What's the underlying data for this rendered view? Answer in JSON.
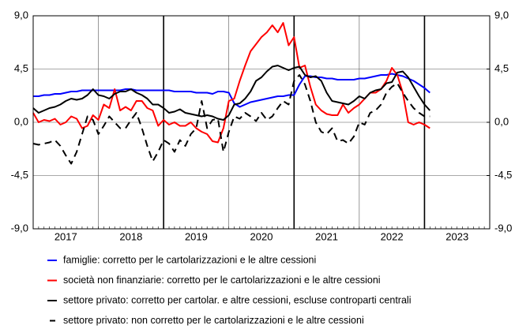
{
  "chart_data": {
    "type": "line",
    "x": [
      2017.0,
      2017.083,
      2017.167,
      2017.25,
      2017.333,
      2017.417,
      2017.5,
      2017.583,
      2017.667,
      2017.75,
      2017.833,
      2017.917,
      2018.0,
      2018.083,
      2018.167,
      2018.25,
      2018.333,
      2018.417,
      2018.5,
      2018.583,
      2018.667,
      2018.75,
      2018.833,
      2018.917,
      2019.0,
      2019.083,
      2019.167,
      2019.25,
      2019.333,
      2019.417,
      2019.5,
      2019.583,
      2019.667,
      2019.75,
      2019.833,
      2019.917,
      2020.0,
      2020.083,
      2020.167,
      2020.25,
      2020.333,
      2020.417,
      2020.5,
      2020.583,
      2020.667,
      2020.75,
      2020.833,
      2020.917,
      2021.0,
      2021.083,
      2021.167,
      2021.25,
      2021.333,
      2021.417,
      2021.5,
      2021.583,
      2021.667,
      2021.75,
      2021.833,
      2021.917,
      2022.0,
      2022.083,
      2022.167,
      2022.25,
      2022.333,
      2022.417,
      2022.5,
      2022.583,
      2022.667,
      2022.75,
      2022.833,
      2022.917,
      2023.0,
      2023.083
    ],
    "xlim": [
      2017.0,
      2024.0
    ],
    "xticks": [
      {
        "value": 2017.5,
        "label": "2017"
      },
      {
        "value": 2018.5,
        "label": "2018"
      },
      {
        "value": 2019.5,
        "label": "2019"
      },
      {
        "value": 2020.5,
        "label": "2020"
      },
      {
        "value": 2021.5,
        "label": "2021"
      },
      {
        "value": 2022.5,
        "label": "2022"
      },
      {
        "value": 2023.5,
        "label": "2023"
      }
    ],
    "ylim": [
      -9,
      9
    ],
    "yticks": [
      {
        "value": -9,
        "label": "-9,0"
      },
      {
        "value": -4.5,
        "label": "-4,5"
      },
      {
        "value": 0,
        "label": "0,0"
      },
      {
        "value": 4.5,
        "label": "4,5"
      },
      {
        "value": 9,
        "label": "9,0"
      }
    ],
    "y2lim": [
      -9,
      9
    ],
    "y2ticks": [
      {
        "value": -9,
        "label": "-9,0"
      },
      {
        "value": -4.5,
        "label": "-4,5"
      },
      {
        "value": 0,
        "label": "0,0"
      },
      {
        "value": 4.5,
        "label": "4,5"
      },
      {
        "value": 9,
        "label": "9,0"
      }
    ],
    "grid": true,
    "series": [
      {
        "name": "famiglie: corretto per le cartolarizzazioni e le altre cessioni",
        "color": "#0000ff",
        "style": "solid",
        "values": [
          2.2,
          2.2,
          2.3,
          2.3,
          2.4,
          2.4,
          2.5,
          2.6,
          2.6,
          2.7,
          2.7,
          2.7,
          2.7,
          2.7,
          2.7,
          2.7,
          2.7,
          2.8,
          2.8,
          2.7,
          2.7,
          2.7,
          2.7,
          2.7,
          2.7,
          2.7,
          2.6,
          2.6,
          2.6,
          2.6,
          2.5,
          2.5,
          2.5,
          2.4,
          2.6,
          2.6,
          2.5,
          1.6,
          1.3,
          1.5,
          1.7,
          1.8,
          1.9,
          2.0,
          2.1,
          2.2,
          2.2,
          2.3,
          2.3,
          3.2,
          3.9,
          3.9,
          3.8,
          3.8,
          3.7,
          3.7,
          3.6,
          3.6,
          3.6,
          3.6,
          3.7,
          3.7,
          3.8,
          3.9,
          4.0,
          4.0,
          4.1,
          4.0,
          3.9,
          3.7,
          3.5,
          3.2,
          2.9,
          2.5
        ]
      },
      {
        "name": "società non finanziarie: corretto per le cartolarizzazioni e le altre cessioni",
        "color": "#ff0000",
        "style": "solid",
        "values": [
          0.8,
          0.0,
          0.2,
          0.1,
          0.3,
          -0.2,
          0.0,
          0.5,
          0.3,
          -0.5,
          -0.3,
          0.6,
          0.2,
          1.5,
          1.2,
          2.8,
          1.0,
          1.3,
          1.0,
          1.8,
          1.8,
          1.2,
          1.0,
          -0.3,
          0.2,
          -0.2,
          0.0,
          -0.3,
          -0.3,
          0.0,
          -0.5,
          -0.8,
          -1.0,
          -1.6,
          -1.7,
          -0.5,
          1.8,
          2.0,
          3.5,
          4.8,
          6.0,
          6.6,
          7.2,
          7.6,
          8.2,
          7.6,
          8.4,
          6.5,
          7.2,
          4.6,
          4.8,
          3.0,
          1.5,
          1.0,
          0.7,
          0.6,
          0.6,
          1.5,
          0.8,
          1.2,
          1.5,
          2.0,
          2.5,
          2.5,
          2.8,
          3.5,
          4.6,
          4.0,
          2.5,
          0.0,
          -0.2,
          0.0,
          -0.2,
          -0.5
        ]
      },
      {
        "name": "settore privato: corretto per cartolar. e altre cessioni, escluse controparti centrali",
        "color": "#000000",
        "style": "solid",
        "values": [
          1.2,
          0.8,
          1.0,
          1.2,
          1.3,
          1.5,
          1.8,
          2.0,
          1.9,
          2.0,
          2.3,
          2.8,
          2.3,
          2.2,
          2.0,
          2.4,
          2.6,
          2.6,
          2.8,
          2.5,
          2.3,
          2.0,
          1.5,
          1.5,
          1.2,
          0.8,
          0.9,
          1.1,
          0.8,
          0.7,
          0.6,
          0.5,
          0.6,
          0.5,
          0.3,
          0.2,
          0.6,
          1.5,
          1.6,
          2.0,
          2.6,
          3.5,
          3.8,
          4.3,
          4.7,
          4.8,
          4.6,
          4.4,
          4.6,
          4.7,
          4.0,
          3.8,
          3.9,
          3.5,
          2.5,
          1.8,
          1.7,
          1.6,
          1.5,
          1.8,
          2.2,
          2.0,
          2.5,
          2.7,
          2.8,
          3.3,
          3.4,
          4.2,
          4.3,
          3.8,
          3.0,
          2.2,
          1.5,
          1.0
        ]
      },
      {
        "name": "settore privato: non corretto per le cartolarizzazioni e le altre cessioni",
        "color": "#000000",
        "style": "dashed",
        "values": [
          -1.8,
          -1.9,
          -1.8,
          -1.7,
          -1.5,
          -2.0,
          -2.8,
          -3.5,
          -2.5,
          -1.0,
          0.5,
          0.2,
          -1.0,
          -0.3,
          0.5,
          0.0,
          -0.5,
          -0.5,
          0.2,
          0.8,
          -0.5,
          -2.0,
          -3.3,
          -2.5,
          -1.5,
          -1.8,
          -2.5,
          -1.5,
          -2.0,
          -1.0,
          -0.5,
          1.8,
          -0.5,
          0.2,
          0.3,
          -2.5,
          -0.8,
          0.5,
          0.3,
          0.8,
          0.5,
          0.1,
          0.8,
          0.2,
          0.5,
          1.2,
          1.8,
          1.5,
          3.5,
          4.0,
          3.2,
          1.8,
          0.0,
          -0.8,
          -1.0,
          -0.5,
          -1.6,
          -1.5,
          -1.8,
          -1.2,
          0.0,
          -0.2,
          0.8,
          1.0,
          1.5,
          2.5,
          3.0,
          3.3,
          2.5,
          1.8,
          1.2,
          0.8,
          0.5,
          0.5
        ]
      }
    ]
  }
}
